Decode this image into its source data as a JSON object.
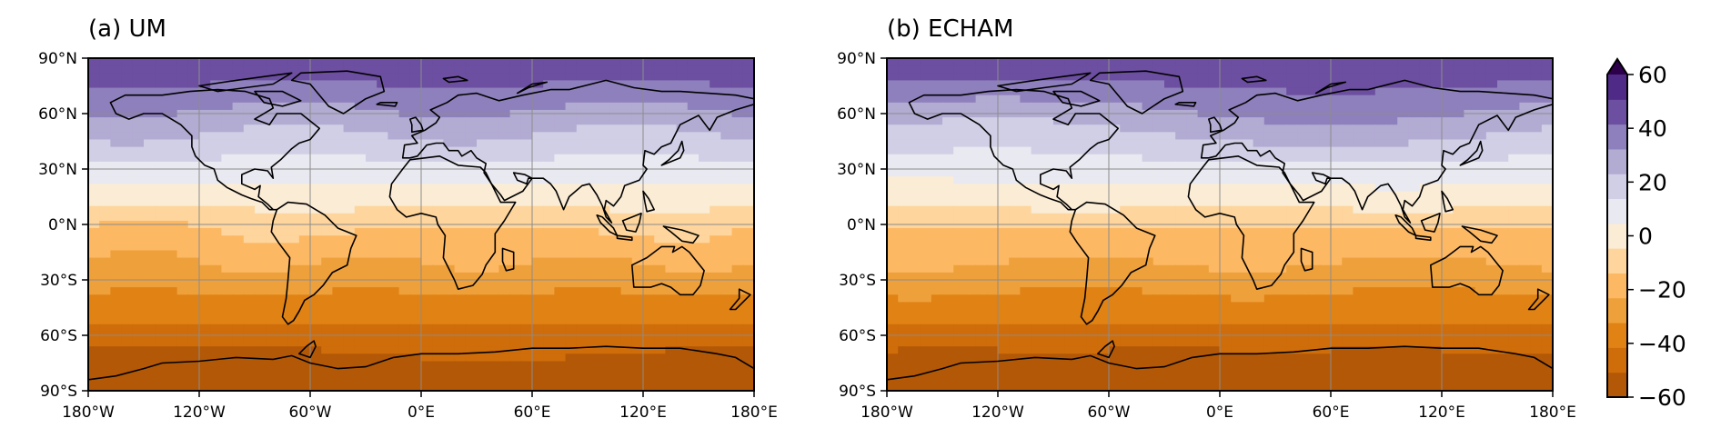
{
  "panels": [
    {
      "title": "(a) UM",
      "variant": "um"
    },
    {
      "title": "(b) ECHAM",
      "variant": "echam"
    }
  ],
  "lat_ticks": [
    "90°N",
    "60°N",
    "30°N",
    "0°N",
    "30°S",
    "60°S",
    "90°S"
  ],
  "lon_ticks": [
    "180°W",
    "120°W",
    "60°W",
    "0°E",
    "60°E",
    "120°E",
    "180°E"
  ],
  "colorbar": {
    "ticks": [
      "60",
      "40",
      "20",
      "0",
      "−20",
      "−40",
      "−60"
    ],
    "levels": [
      -60,
      -50,
      -40,
      -30,
      -20,
      -10,
      0,
      10,
      20,
      30,
      40,
      50,
      60
    ],
    "colors": [
      "#b35806",
      "#cf6d0b",
      "#e08214",
      "#eea13b",
      "#fdb863",
      "#fed59c",
      "#fbecd6",
      "#e9e9f1",
      "#d0cfe6",
      "#b2abd2",
      "#8e80bc",
      "#6c4fa0",
      "#4f2a86"
    ],
    "extend": "max",
    "extend_color": "#2d004b"
  }
}
